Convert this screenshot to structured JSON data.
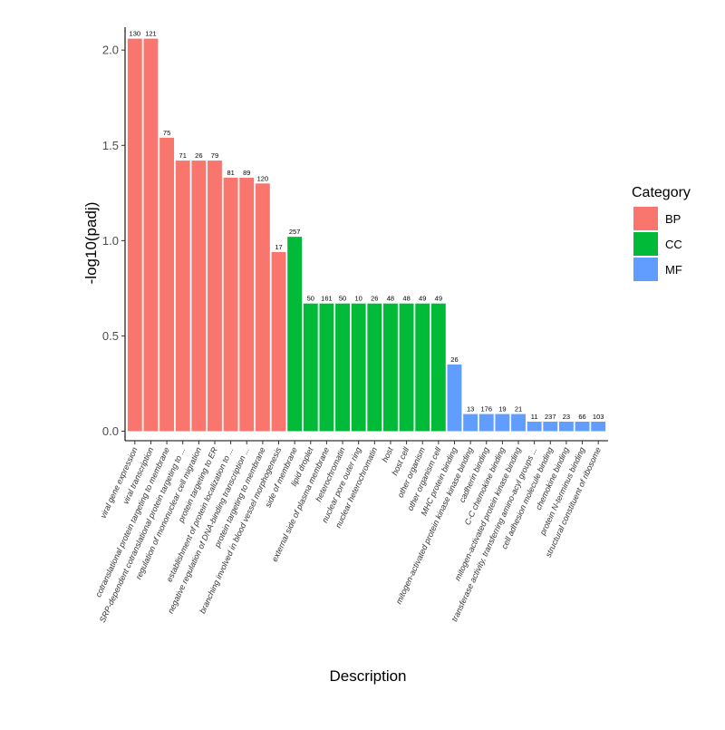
{
  "chart_data": {
    "type": "bar",
    "xlabel": "Description",
    "ylabel": "-log10(padj)",
    "ylim": [
      -0.05,
      2.12
    ],
    "yticks": [
      "0.0",
      "0.5",
      "1.0",
      "1.5",
      "2.0"
    ],
    "legend": {
      "title": "Category",
      "placement": "right",
      "items": [
        {
          "name": "BP",
          "color": "#F8766D"
        },
        {
          "name": "CC",
          "color": "#00BA38"
        },
        {
          "name": "MF",
          "color": "#619CFF"
        }
      ]
    },
    "categories": [
      "viral gene expression",
      "viral transcription",
      "cotranslational protein targeting to membrane",
      "SRP-dependent cotranslational protein targeting to ...",
      "regulation of mononuclear cell migration",
      "protein targeting to ER",
      "establishment of protein localization to ...",
      "negative regulation of DNA-binding transcription ...",
      "protein targeting to membrane",
      "branching involved in blood vessel morphogenesis",
      "side of membrane",
      "lipid droplet",
      "external side of plasma membrane",
      "heterochromatin",
      "nuclear pore outer ring",
      "nuclear heterochromatin",
      "host",
      "host cell",
      "other organism",
      "other organism cell",
      "MHC protein binding",
      "mitogen-activated protein kinase kinase binding",
      "cadherin binding",
      "C-C chemokine binding",
      "mitogen-activated protein kinase binding",
      "transferase activity, transferring amino-acyl groups ...",
      "cell adhesion molecule binding",
      "chemokine binding",
      "protein N-terminus binding",
      "structural constituent of ribosome"
    ],
    "values": [
      2.06,
      2.06,
      1.54,
      1.42,
      1.42,
      1.42,
      1.33,
      1.33,
      1.3,
      0.94,
      1.02,
      0.67,
      0.67,
      0.67,
      0.67,
      0.67,
      0.67,
      0.67,
      0.67,
      0.67,
      0.35,
      0.09,
      0.09,
      0.09,
      0.09,
      0.05,
      0.05,
      0.05,
      0.05,
      0.05
    ],
    "counts": [
      "130",
      "121",
      "75",
      "71",
      "26",
      "79",
      "81",
      "89",
      "120",
      "17",
      "257",
      "50",
      "161",
      "50",
      "10",
      "26",
      "48",
      "48",
      "49",
      "49",
      "26",
      "13",
      "176",
      "19",
      "21",
      "11",
      "237",
      "23",
      "66",
      "103"
    ],
    "category_group": [
      "BP",
      "BP",
      "BP",
      "BP",
      "BP",
      "BP",
      "BP",
      "BP",
      "BP",
      "BP",
      "CC",
      "CC",
      "CC",
      "CC",
      "CC",
      "CC",
      "CC",
      "CC",
      "CC",
      "CC",
      "MF",
      "MF",
      "MF",
      "MF",
      "MF",
      "MF",
      "MF",
      "MF",
      "MF",
      "MF"
    ]
  }
}
